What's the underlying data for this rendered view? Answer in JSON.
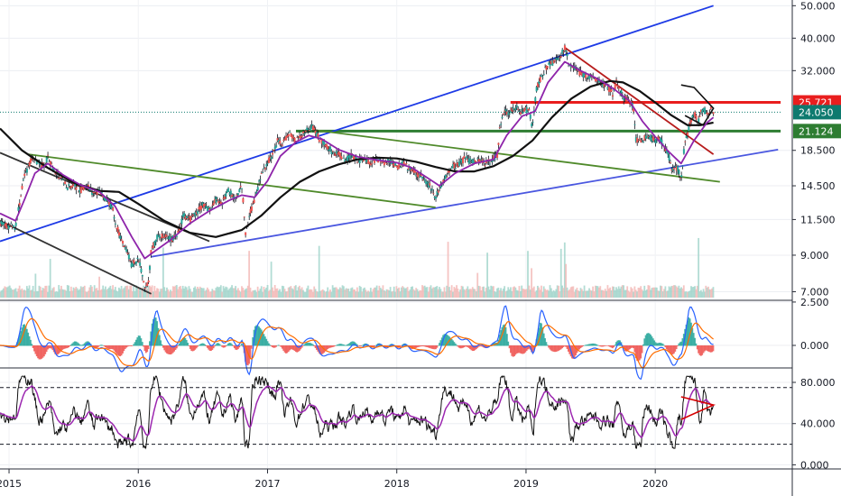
{
  "chart_data": {
    "type": "line",
    "panels": [
      {
        "name": "price",
        "scale": "log",
        "ylim": [
          6.6,
          52
        ],
        "ticks": [
          "50.000",
          "40.000",
          "32.000",
          "25.721",
          "24.050",
          "21.124",
          "18.500",
          "14.500",
          "11.500",
          "9.000",
          "7.000"
        ],
        "price_labels": [
          {
            "text": "25.721",
            "value": 25.721,
            "color": "#e91e1e"
          },
          {
            "text": "24.050",
            "value": 24.05,
            "color": "#0e7a6f"
          },
          {
            "text": "21.124",
            "value": 21.124,
            "color": "#2e7d32"
          }
        ]
      },
      {
        "name": "macd",
        "ylim": [
          -1.3,
          2.6
        ],
        "ticks": [
          "2.500",
          "0.000"
        ]
      },
      {
        "name": "rsi",
        "ylim": [
          -4,
          94
        ],
        "ticks": [
          "80.000",
          "40.000",
          "0.000"
        ],
        "bands": [
          75,
          20
        ]
      }
    ],
    "x_ticks": [
      "2015",
      "2016",
      "2017",
      "2018",
      "2019",
      "2020"
    ],
    "x_tick_values": [
      2015.0,
      2016.0,
      2017.0,
      2018.0,
      2019.0,
      2020.0
    ],
    "xlim": [
      2014.93,
      2021.06
    ],
    "price_series": [
      [
        2014.93,
        11.2
      ],
      [
        2015.0,
        11.0
      ],
      [
        2015.05,
        10.9
      ],
      [
        2015.08,
        12.8
      ],
      [
        2015.12,
        15.5
      ],
      [
        2015.17,
        17.4
      ],
      [
        2015.22,
        17.0
      ],
      [
        2015.27,
        16.7
      ],
      [
        2015.3,
        17.6
      ],
      [
        2015.35,
        16.0
      ],
      [
        2015.4,
        15.3
      ],
      [
        2015.45,
        14.4
      ],
      [
        2015.5,
        14.6
      ],
      [
        2015.55,
        14.0
      ],
      [
        2015.6,
        14.6
      ],
      [
        2015.65,
        13.8
      ],
      [
        2015.7,
        13.9
      ],
      [
        2015.75,
        13.2
      ],
      [
        2015.8,
        12.5
      ],
      [
        2015.83,
        11.0
      ],
      [
        2015.87,
        10.0
      ],
      [
        2015.9,
        9.5
      ],
      [
        2015.95,
        8.4
      ],
      [
        2016.0,
        8.8
      ],
      [
        2016.05,
        7.2
      ],
      [
        2016.08,
        7.5
      ],
      [
        2016.1,
        9.3
      ],
      [
        2016.15,
        10.2
      ],
      [
        2016.2,
        10.3
      ],
      [
        2016.25,
        10.0
      ],
      [
        2016.3,
        10.3
      ],
      [
        2016.35,
        11.8
      ],
      [
        2016.4,
        11.5
      ],
      [
        2016.45,
        12.0
      ],
      [
        2016.5,
        12.8
      ],
      [
        2016.55,
        12.3
      ],
      [
        2016.6,
        13.2
      ],
      [
        2016.65,
        13.0
      ],
      [
        2016.7,
        14.0
      ],
      [
        2016.75,
        13.4
      ],
      [
        2016.8,
        14.5
      ],
      [
        2016.83,
        10.5
      ],
      [
        2016.87,
        12.2
      ],
      [
        2016.9,
        13.2
      ],
      [
        2016.95,
        15.5
      ],
      [
        2017.0,
        17.0
      ],
      [
        2017.05,
        18.2
      ],
      [
        2017.08,
        20.0
      ],
      [
        2017.12,
        19.5
      ],
      [
        2017.17,
        20.6
      ],
      [
        2017.22,
        19.8
      ],
      [
        2017.27,
        20.5
      ],
      [
        2017.3,
        21.2
      ],
      [
        2017.35,
        21.8
      ],
      [
        2017.4,
        20.0
      ],
      [
        2017.45,
        19.2
      ],
      [
        2017.5,
        18.3
      ],
      [
        2017.55,
        18.0
      ],
      [
        2017.6,
        17.3
      ],
      [
        2017.65,
        17.8
      ],
      [
        2017.7,
        17.2
      ],
      [
        2017.75,
        17.6
      ],
      [
        2017.8,
        16.9
      ],
      [
        2017.85,
        17.4
      ],
      [
        2017.9,
        16.8
      ],
      [
        2017.95,
        17.2
      ],
      [
        2018.0,
        16.5
      ],
      [
        2018.05,
        17.0
      ],
      [
        2018.1,
        16.2
      ],
      [
        2018.15,
        15.8
      ],
      [
        2018.2,
        15.4
      ],
      [
        2018.25,
        14.6
      ],
      [
        2018.3,
        13.5
      ],
      [
        2018.33,
        14.2
      ],
      [
        2018.38,
        15.5
      ],
      [
        2018.43,
        16.6
      ],
      [
        2018.48,
        16.8
      ],
      [
        2018.53,
        17.6
      ],
      [
        2018.58,
        17.0
      ],
      [
        2018.63,
        17.4
      ],
      [
        2018.68,
        16.9
      ],
      [
        2018.73,
        17.3
      ],
      [
        2018.78,
        17.9
      ],
      [
        2018.8,
        22.0
      ],
      [
        2018.83,
        24.5
      ],
      [
        2018.87,
        23.8
      ],
      [
        2018.92,
        24.9
      ],
      [
        2018.97,
        24.0
      ],
      [
        2019.02,
        24.6
      ],
      [
        2019.05,
        21.5
      ],
      [
        2019.08,
        28.0
      ],
      [
        2019.12,
        31.0
      ],
      [
        2019.17,
        33.0
      ],
      [
        2019.22,
        34.0
      ],
      [
        2019.27,
        35.5
      ],
      [
        2019.3,
        37.5
      ],
      [
        2019.33,
        34.0
      ],
      [
        2019.37,
        32.5
      ],
      [
        2019.42,
        31.5
      ],
      [
        2019.47,
        30.8
      ],
      [
        2019.52,
        30.6
      ],
      [
        2019.57,
        29.5
      ],
      [
        2019.62,
        29.0
      ],
      [
        2019.67,
        27.2
      ],
      [
        2019.7,
        29.5
      ],
      [
        2019.75,
        26.8
      ],
      [
        2019.8,
        25.8
      ],
      [
        2019.83,
        24.9
      ],
      [
        2019.85,
        19.8
      ],
      [
        2019.9,
        20.0
      ],
      [
        2019.95,
        20.5
      ],
      [
        2020.0,
        19.6
      ],
      [
        2020.03,
        20.1
      ],
      [
        2020.07,
        18.9
      ],
      [
        2020.1,
        18.0
      ],
      [
        2020.13,
        16.0
      ],
      [
        2020.17,
        16.4
      ],
      [
        2020.2,
        15.2
      ],
      [
        2020.23,
        19.5
      ],
      [
        2020.27,
        22.3
      ],
      [
        2020.3,
        24.0
      ],
      [
        2020.33,
        22.4
      ],
      [
        2020.37,
        24.8
      ],
      [
        2020.4,
        23.5
      ],
      [
        2020.43,
        24.5
      ],
      [
        2020.45,
        24.05
      ]
    ],
    "ma_fast_series": [
      [
        2014.93,
        12.0
      ],
      [
        2015.05,
        11.4
      ],
      [
        2015.12,
        13.2
      ],
      [
        2015.2,
        15.8
      ],
      [
        2015.3,
        16.9
      ],
      [
        2015.42,
        15.6
      ],
      [
        2015.55,
        14.6
      ],
      [
        2015.7,
        13.9
      ],
      [
        2015.82,
        12.6
      ],
      [
        2015.95,
        10.2
      ],
      [
        2016.05,
        8.8
      ],
      [
        2016.12,
        9.2
      ],
      [
        2016.25,
        10.0
      ],
      [
        2016.4,
        11.2
      ],
      [
        2016.55,
        12.2
      ],
      [
        2016.7,
        13.1
      ],
      [
        2016.8,
        13.6
      ],
      [
        2016.9,
        13.4
      ],
      [
        2017.0,
        15.0
      ],
      [
        2017.1,
        17.8
      ],
      [
        2017.22,
        19.6
      ],
      [
        2017.32,
        20.5
      ],
      [
        2017.42,
        20.0
      ],
      [
        2017.55,
        18.6
      ],
      [
        2017.7,
        17.7
      ],
      [
        2017.85,
        17.3
      ],
      [
        2018.0,
        17.0
      ],
      [
        2018.12,
        16.4
      ],
      [
        2018.25,
        15.2
      ],
      [
        2018.33,
        14.5
      ],
      [
        2018.45,
        15.8
      ],
      [
        2018.6,
        16.9
      ],
      [
        2018.75,
        17.4
      ],
      [
        2018.85,
        20.5
      ],
      [
        2018.97,
        23.4
      ],
      [
        2019.07,
        24.2
      ],
      [
        2019.17,
        29.5
      ],
      [
        2019.3,
        34.0
      ],
      [
        2019.42,
        32.0
      ],
      [
        2019.55,
        30.3
      ],
      [
        2019.68,
        28.2
      ],
      [
        2019.8,
        26.0
      ],
      [
        2019.9,
        22.6
      ],
      [
        2020.0,
        20.3
      ],
      [
        2020.1,
        18.4
      ],
      [
        2020.2,
        16.9
      ],
      [
        2020.3,
        19.8
      ],
      [
        2020.4,
        22.4
      ],
      [
        2020.45,
        23.2
      ]
    ],
    "ma_slow_series": [
      [
        2014.93,
        21.5
      ],
      [
        2015.1,
        18.5
      ],
      [
        2015.3,
        16.4
      ],
      [
        2015.5,
        14.8
      ],
      [
        2015.7,
        14.0
      ],
      [
        2015.85,
        13.9
      ],
      [
        2016.0,
        12.8
      ],
      [
        2016.2,
        11.4
      ],
      [
        2016.4,
        10.5
      ],
      [
        2016.6,
        10.2
      ],
      [
        2016.8,
        10.7
      ],
      [
        2016.95,
        11.8
      ],
      [
        2017.1,
        13.4
      ],
      [
        2017.25,
        14.9
      ],
      [
        2017.4,
        16.0
      ],
      [
        2017.55,
        16.8
      ],
      [
        2017.7,
        17.4
      ],
      [
        2017.85,
        17.6
      ],
      [
        2018.0,
        17.5
      ],
      [
        2018.15,
        17.1
      ],
      [
        2018.3,
        16.5
      ],
      [
        2018.45,
        16.0
      ],
      [
        2018.6,
        16.0
      ],
      [
        2018.75,
        16.6
      ],
      [
        2018.9,
        17.8
      ],
      [
        2019.05,
        19.8
      ],
      [
        2019.2,
        23.2
      ],
      [
        2019.35,
        26.4
      ],
      [
        2019.5,
        28.7
      ],
      [
        2019.65,
        29.8
      ],
      [
        2019.75,
        29.5
      ],
      [
        2019.88,
        27.8
      ],
      [
        2020.0,
        25.7
      ],
      [
        2020.12,
        23.6
      ],
      [
        2020.25,
        22.0
      ],
      [
        2020.35,
        22.0
      ],
      [
        2020.45,
        22.4
      ]
    ],
    "trendlines": [
      {
        "color": "#1e3be6",
        "points": [
          [
            2014.93,
            9.9
          ],
          [
            2020.45,
            50.0
          ]
        ]
      },
      {
        "color": "#4a57e0",
        "points": [
          [
            2016.1,
            8.9
          ],
          [
            2020.95,
            18.6
          ]
        ]
      },
      {
        "color": "#333333",
        "points": [
          [
            2014.93,
            18.2
          ],
          [
            2016.55,
            9.9
          ]
        ]
      },
      {
        "color": "#333333",
        "points": [
          [
            2014.93,
            11.4
          ],
          [
            2016.1,
            6.9
          ]
        ]
      },
      {
        "color": "#4f8a2a",
        "points": [
          [
            2015.15,
            18.0
          ],
          [
            2018.3,
            12.5
          ]
        ]
      },
      {
        "color": "#4f8a2a",
        "points": [
          [
            2017.35,
            21.3
          ],
          [
            2020.5,
            14.9
          ]
        ]
      },
      {
        "color": "#b71c1c",
        "points": [
          [
            2019.3,
            37.5
          ],
          [
            2020.45,
            18.0
          ]
        ]
      }
    ],
    "hlines": [
      {
        "color": "#e91e1e",
        "value": 25.721,
        "from": 2018.88,
        "to": 2020.97
      },
      {
        "color": "#2e7d32",
        "value": 21.124,
        "from": 2017.22,
        "to": 2020.97
      },
      {
        "color": "#0e7a6f",
        "value": 24.05,
        "from": 2014.93,
        "to": 2020.97,
        "dotted": true
      }
    ]
  }
}
